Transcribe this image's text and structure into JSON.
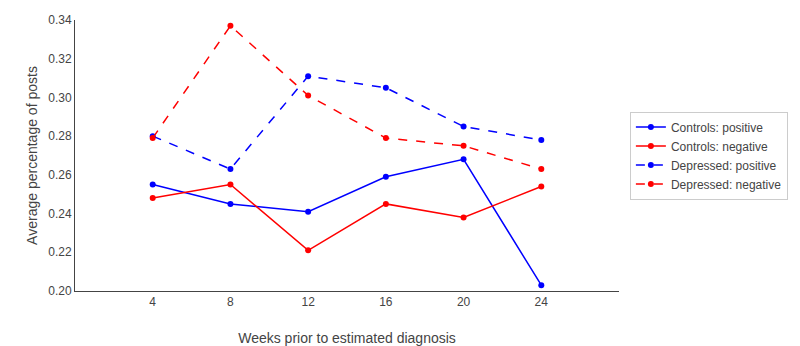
{
  "chart_data": {
    "type": "line",
    "x": [
      4,
      8,
      12,
      16,
      20,
      24
    ],
    "series": [
      {
        "name": "Controls: positive",
        "color": "#0000ff",
        "line_style": "solid",
        "marker": "circle",
        "values": [
          0.255,
          0.245,
          0.241,
          0.259,
          0.268,
          0.203
        ]
      },
      {
        "name": "Controls: negative",
        "color": "#ff0000",
        "line_style": "solid",
        "marker": "circle",
        "values": [
          0.248,
          0.255,
          0.221,
          0.245,
          0.238,
          0.254
        ]
      },
      {
        "name": "Depressed: positive",
        "color": "#0000ff",
        "line_style": "dashed",
        "marker": "circle",
        "values": [
          0.28,
          0.263,
          0.311,
          0.305,
          0.285,
          0.278
        ]
      },
      {
        "name": "Depressed: negative",
        "color": "#ff0000",
        "line_style": "dashed",
        "marker": "circle",
        "values": [
          0.279,
          0.337,
          0.301,
          0.279,
          0.275,
          0.263
        ]
      }
    ],
    "xlabel": "Weeks prior to estimated diagnosis",
    "ylabel": "Average percentage of posts",
    "xlim": [
      0,
      28
    ],
    "xticks": [
      4,
      8,
      12,
      16,
      20,
      24
    ],
    "ylim": [
      0.2,
      0.34
    ],
    "yticks": [
      {
        "value": 0.2,
        "label": "0.20"
      },
      0.22,
      0.24,
      0.26,
      0.28,
      {
        "value": 0.3,
        "label": "0.30"
      },
      0.32,
      0.34
    ],
    "grid": false,
    "legend": "right"
  }
}
